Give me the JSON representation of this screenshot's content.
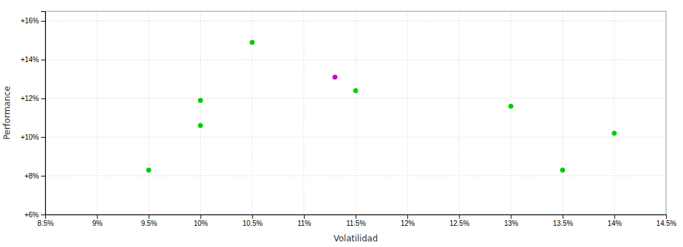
{
  "chart_data": {
    "type": "scatter",
    "xlabel": "Volatilidad",
    "ylabel": "Performance",
    "xlim": [
      0.085,
      0.145
    ],
    "ylim": [
      0.06,
      0.165
    ],
    "xticks": [
      {
        "value": 0.085,
        "label": "8.5%"
      },
      {
        "value": 0.09,
        "label": "9%"
      },
      {
        "value": 0.095,
        "label": "9.5%"
      },
      {
        "value": 0.1,
        "label": "10%"
      },
      {
        "value": 0.105,
        "label": "10.5%"
      },
      {
        "value": 0.11,
        "label": "11%"
      },
      {
        "value": 0.115,
        "label": "11.5%"
      },
      {
        "value": 0.12,
        "label": "12%"
      },
      {
        "value": 0.125,
        "label": "12.5%"
      },
      {
        "value": 0.13,
        "label": "13%"
      },
      {
        "value": 0.135,
        "label": "13.5%"
      },
      {
        "value": 0.14,
        "label": "14%"
      },
      {
        "value": 0.145,
        "label": "14.5%"
      }
    ],
    "yticks": [
      {
        "value": 0.06,
        "label": "+6%"
      },
      {
        "value": 0.08,
        "label": "+8%"
      },
      {
        "value": 0.1,
        "label": "+10%"
      },
      {
        "value": 0.12,
        "label": "+12%"
      },
      {
        "value": 0.14,
        "label": "+14%"
      },
      {
        "value": 0.16,
        "label": "+16%"
      }
    ],
    "grid": true,
    "series": [
      {
        "color": "#00cc00",
        "x": [
          0.095,
          0.1,
          0.1,
          0.105,
          0.115,
          0.13,
          0.135,
          0.14
        ],
        "values": [
          0.083,
          0.119,
          0.106,
          0.149,
          0.124,
          0.116,
          0.083,
          0.102
        ]
      },
      {
        "color": "#cc00cc",
        "x": [
          0.113
        ],
        "values": [
          0.131
        ]
      }
    ]
  }
}
